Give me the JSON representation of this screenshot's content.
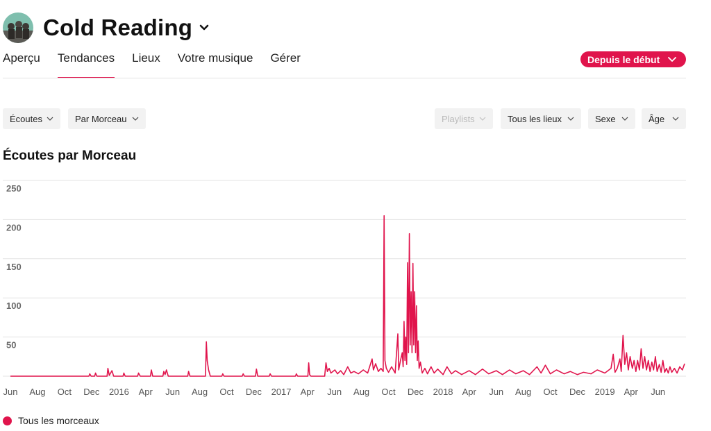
{
  "header": {
    "artist_name": "Cold Reading"
  },
  "tabs": [
    {
      "label": "Aperçu",
      "active": false
    },
    {
      "label": "Tendances",
      "active": true
    },
    {
      "label": "Lieux",
      "active": false
    },
    {
      "label": "Votre musique",
      "active": false
    },
    {
      "label": "Gérer",
      "active": false
    }
  ],
  "period": {
    "label": "Depuis le début"
  },
  "filters": {
    "metric": "Écoutes",
    "breakdown": "Par Morceau",
    "playlists": "Playlists",
    "locations": "Tous les lieux",
    "gender": "Sexe",
    "age": "Âge"
  },
  "section_title": "Écoutes par Morceau",
  "colors": {
    "accent": "#e0144c",
    "grid": "#e3e3e3",
    "tab_divider": "#e2e2e2"
  },
  "icons": {
    "title_dropdown": "chevron-down-icon",
    "filter_dropdown": "chevron-down-icon"
  },
  "chart_data": {
    "type": "line",
    "title": "Écoutes par Morceau",
    "xlabel": "",
    "ylabel": "",
    "x_range": [
      "2015-06-01",
      "2019-07-31"
    ],
    "ylim": [
      0,
      250
    ],
    "y_ticks": [
      50,
      100,
      150,
      200,
      250
    ],
    "x_ticks": [
      {
        "label": "Jun",
        "date": "2015-06-01"
      },
      {
        "label": "Aug",
        "date": "2015-08-01"
      },
      {
        "label": "Oct",
        "date": "2015-10-01"
      },
      {
        "label": "Dec",
        "date": "2015-12-01"
      },
      {
        "label": "2016",
        "date": "2016-02-01"
      },
      {
        "label": "Apr",
        "date": "2016-04-01"
      },
      {
        "label": "Jun",
        "date": "2016-06-01"
      },
      {
        "label": "Aug",
        "date": "2016-08-01"
      },
      {
        "label": "Oct",
        "date": "2016-10-01"
      },
      {
        "label": "Dec",
        "date": "2016-12-01"
      },
      {
        "label": "2017",
        "date": "2017-02-01"
      },
      {
        "label": "Apr",
        "date": "2017-04-01"
      },
      {
        "label": "Jun",
        "date": "2017-06-01"
      },
      {
        "label": "Aug",
        "date": "2017-08-01"
      },
      {
        "label": "Oct",
        "date": "2017-10-01"
      },
      {
        "label": "Dec",
        "date": "2017-12-01"
      },
      {
        "label": "2018",
        "date": "2018-02-01"
      },
      {
        "label": "Apr",
        "date": "2018-04-01"
      },
      {
        "label": "Jun",
        "date": "2018-06-01"
      },
      {
        "label": "Aug",
        "date": "2018-08-01"
      },
      {
        "label": "Oct",
        "date": "2018-10-01"
      },
      {
        "label": "Dec",
        "date": "2018-12-01"
      },
      {
        "label": "2019",
        "date": "2019-02-01"
      },
      {
        "label": "Apr",
        "date": "2019-04-01"
      },
      {
        "label": "Jun",
        "date": "2019-06-01"
      }
    ],
    "grid": true,
    "legend_position": "bottom-left",
    "series": [
      {
        "name": "Tous les morceaux",
        "color": "#e0144c",
        "points": [
          [
            "2015-06-01",
            0
          ],
          [
            "2015-11-25",
            0
          ],
          [
            "2015-11-27",
            3
          ],
          [
            "2015-11-30",
            0
          ],
          [
            "2015-12-08",
            0
          ],
          [
            "2015-12-10",
            4
          ],
          [
            "2015-12-13",
            0
          ],
          [
            "2016-01-05",
            0
          ],
          [
            "2016-01-07",
            10
          ],
          [
            "2016-01-10",
            1
          ],
          [
            "2016-01-16",
            7
          ],
          [
            "2016-01-20",
            0
          ],
          [
            "2016-02-10",
            0
          ],
          [
            "2016-02-12",
            4
          ],
          [
            "2016-02-15",
            0
          ],
          [
            "2016-03-14",
            0
          ],
          [
            "2016-03-16",
            4
          ],
          [
            "2016-03-20",
            0
          ],
          [
            "2016-04-12",
            0
          ],
          [
            "2016-04-14",
            8
          ],
          [
            "2016-04-17",
            0
          ],
          [
            "2016-05-10",
            0
          ],
          [
            "2016-05-12",
            6
          ],
          [
            "2016-05-15",
            2
          ],
          [
            "2016-05-18",
            8
          ],
          [
            "2016-05-22",
            0
          ],
          [
            "2016-07-05",
            0
          ],
          [
            "2016-07-07",
            6
          ],
          [
            "2016-07-10",
            0
          ],
          [
            "2016-08-14",
            0
          ],
          [
            "2016-08-16",
            44
          ],
          [
            "2016-08-18",
            20
          ],
          [
            "2016-08-21",
            8
          ],
          [
            "2016-08-25",
            0
          ],
          [
            "2016-09-20",
            0
          ],
          [
            "2016-09-22",
            3
          ],
          [
            "2016-09-25",
            0
          ],
          [
            "2016-11-05",
            0
          ],
          [
            "2016-11-07",
            3
          ],
          [
            "2016-11-10",
            0
          ],
          [
            "2016-12-05",
            0
          ],
          [
            "2016-12-07",
            9
          ],
          [
            "2016-12-10",
            0
          ],
          [
            "2017-01-05",
            0
          ],
          [
            "2017-01-07",
            3
          ],
          [
            "2017-01-10",
            0
          ],
          [
            "2017-03-05",
            0
          ],
          [
            "2017-03-07",
            3
          ],
          [
            "2017-03-10",
            0
          ],
          [
            "2017-04-02",
            0
          ],
          [
            "2017-04-04",
            17
          ],
          [
            "2017-04-06",
            2
          ],
          [
            "2017-04-09",
            0
          ],
          [
            "2017-05-10",
            0
          ],
          [
            "2017-05-13",
            17
          ],
          [
            "2017-05-16",
            6
          ],
          [
            "2017-05-20",
            10
          ],
          [
            "2017-05-24",
            4
          ],
          [
            "2017-06-02",
            8
          ],
          [
            "2017-06-08",
            3
          ],
          [
            "2017-06-15",
            7
          ],
          [
            "2017-06-22",
            2
          ],
          [
            "2017-07-01",
            12
          ],
          [
            "2017-07-08",
            4
          ],
          [
            "2017-07-15",
            6
          ],
          [
            "2017-07-25",
            3
          ],
          [
            "2017-08-05",
            8
          ],
          [
            "2017-08-15",
            4
          ],
          [
            "2017-08-25",
            22
          ],
          [
            "2017-08-28",
            8
          ],
          [
            "2017-09-02",
            16
          ],
          [
            "2017-09-08",
            6
          ],
          [
            "2017-09-14",
            10
          ],
          [
            "2017-09-19",
            6
          ],
          [
            "2017-09-21",
            205
          ],
          [
            "2017-09-23",
            20
          ],
          [
            "2017-09-26",
            10
          ],
          [
            "2017-10-01",
            5
          ],
          [
            "2017-10-08",
            12
          ],
          [
            "2017-10-16",
            4
          ],
          [
            "2017-10-22",
            54
          ],
          [
            "2017-10-24",
            8
          ],
          [
            "2017-10-28",
            20
          ],
          [
            "2017-11-01",
            30
          ],
          [
            "2017-11-03",
            12
          ],
          [
            "2017-11-05",
            70
          ],
          [
            "2017-11-07",
            20
          ],
          [
            "2017-11-09",
            50
          ],
          [
            "2017-11-11",
            15
          ],
          [
            "2017-11-13",
            145
          ],
          [
            "2017-11-15",
            30
          ],
          [
            "2017-11-17",
            182
          ],
          [
            "2017-11-19",
            40
          ],
          [
            "2017-11-21",
            108
          ],
          [
            "2017-11-23",
            30
          ],
          [
            "2017-11-25",
            144
          ],
          [
            "2017-11-27",
            40
          ],
          [
            "2017-11-29",
            108
          ],
          [
            "2017-12-01",
            30
          ],
          [
            "2017-12-03",
            90
          ],
          [
            "2017-12-05",
            20
          ],
          [
            "2017-12-07",
            45
          ],
          [
            "2017-12-09",
            10
          ],
          [
            "2017-12-12",
            18
          ],
          [
            "2017-12-16",
            4
          ],
          [
            "2017-12-22",
            10
          ],
          [
            "2017-12-28",
            3
          ],
          [
            "2018-01-05",
            12
          ],
          [
            "2018-01-12",
            4
          ],
          [
            "2018-01-20",
            9
          ],
          [
            "2018-02-01",
            2
          ],
          [
            "2018-02-10",
            12
          ],
          [
            "2018-02-20",
            3
          ],
          [
            "2018-03-01",
            7
          ],
          [
            "2018-03-15",
            2
          ],
          [
            "2018-04-01",
            7
          ],
          [
            "2018-04-15",
            2
          ],
          [
            "2018-05-01",
            9
          ],
          [
            "2018-05-15",
            3
          ],
          [
            "2018-06-01",
            7
          ],
          [
            "2018-06-15",
            2
          ],
          [
            "2018-07-01",
            8
          ],
          [
            "2018-07-15",
            3
          ],
          [
            "2018-08-01",
            7
          ],
          [
            "2018-08-15",
            2
          ],
          [
            "2018-09-01",
            12
          ],
          [
            "2018-09-10",
            4
          ],
          [
            "2018-09-20",
            14
          ],
          [
            "2018-10-01",
            3
          ],
          [
            "2018-10-15",
            8
          ],
          [
            "2018-11-01",
            3
          ],
          [
            "2018-11-15",
            6
          ],
          [
            "2018-12-01",
            2
          ],
          [
            "2018-12-15",
            5
          ],
          [
            "2019-01-01",
            3
          ],
          [
            "2019-01-15",
            8
          ],
          [
            "2019-02-01",
            4
          ],
          [
            "2019-02-15",
            10
          ],
          [
            "2019-02-20",
            28
          ],
          [
            "2019-02-24",
            5
          ],
          [
            "2019-03-01",
            10
          ],
          [
            "2019-03-07",
            22
          ],
          [
            "2019-03-10",
            6
          ],
          [
            "2019-03-14",
            52
          ],
          [
            "2019-03-18",
            15
          ],
          [
            "2019-03-22",
            30
          ],
          [
            "2019-03-26",
            8
          ],
          [
            "2019-03-30",
            25
          ],
          [
            "2019-04-04",
            10
          ],
          [
            "2019-04-08",
            20
          ],
          [
            "2019-04-12",
            6
          ],
          [
            "2019-04-16",
            20
          ],
          [
            "2019-04-20",
            8
          ],
          [
            "2019-04-24",
            35
          ],
          [
            "2019-04-28",
            10
          ],
          [
            "2019-05-02",
            25
          ],
          [
            "2019-05-06",
            8
          ],
          [
            "2019-05-10",
            20
          ],
          [
            "2019-05-14",
            6
          ],
          [
            "2019-05-18",
            18
          ],
          [
            "2019-05-22",
            8
          ],
          [
            "2019-05-26",
            25
          ],
          [
            "2019-05-30",
            6
          ],
          [
            "2019-06-04",
            15
          ],
          [
            "2019-06-08",
            5
          ],
          [
            "2019-06-12",
            20
          ],
          [
            "2019-06-16",
            5
          ],
          [
            "2019-06-20",
            10
          ],
          [
            "2019-06-24",
            4
          ],
          [
            "2019-06-28",
            12
          ],
          [
            "2019-07-02",
            5
          ],
          [
            "2019-07-08",
            10
          ],
          [
            "2019-07-14",
            4
          ],
          [
            "2019-07-20",
            12
          ],
          [
            "2019-07-26",
            8
          ],
          [
            "2019-07-31",
            16
          ]
        ]
      }
    ]
  }
}
